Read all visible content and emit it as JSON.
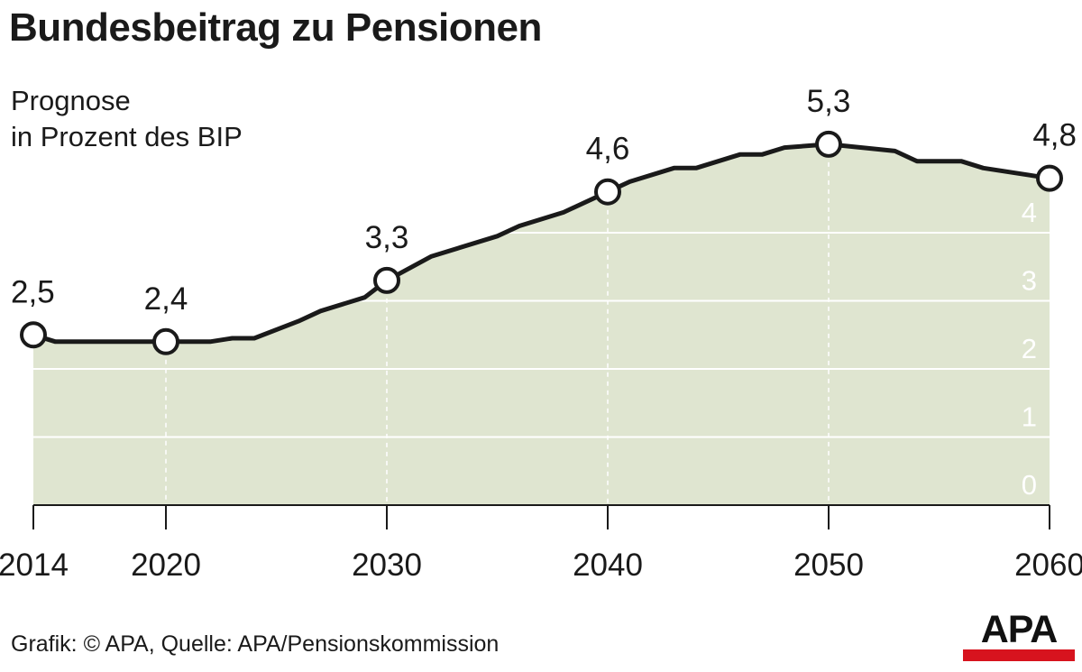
{
  "chart_data": {
    "type": "area",
    "title": "Bundesbeitrag zu Pensionen",
    "subtitle_lines": [
      "Prognose",
      "in Prozent des BIP"
    ],
    "x_ticks": [
      "2014",
      "2020",
      "2030",
      "2040",
      "2050",
      "2060"
    ],
    "y_ticks": [
      "0",
      "1",
      "2",
      "3",
      "4"
    ],
    "ylim": [
      0,
      5.3
    ],
    "xlim": [
      2014,
      2060
    ],
    "grid": true,
    "series": [
      {
        "x": [
          2014,
          2015,
          2020,
          2022,
          2023,
          2024,
          2026,
          2027,
          2029,
          2030,
          2032,
          2035,
          2036,
          2038,
          2040,
          2041,
          2043,
          2044,
          2046,
          2047,
          2048,
          2050,
          2053,
          2054,
          2056,
          2057,
          2060
        ],
        "y": [
          2.5,
          2.4,
          2.4,
          2.4,
          2.45,
          2.45,
          2.7,
          2.85,
          3.05,
          3.3,
          3.65,
          3.95,
          4.1,
          4.3,
          4.6,
          4.75,
          4.95,
          4.95,
          5.15,
          5.15,
          5.25,
          5.3,
          5.2,
          5.05,
          5.05,
          4.95,
          4.8
        ]
      }
    ],
    "highlighted_points": [
      {
        "x": 2014,
        "y": 2.5,
        "label": "2,5"
      },
      {
        "x": 2020,
        "y": 2.4,
        "label": "2,4"
      },
      {
        "x": 2030,
        "y": 3.3,
        "label": "3,3"
      },
      {
        "x": 2040,
        "y": 4.6,
        "label": "4,6"
      },
      {
        "x": 2050,
        "y": 5.3,
        "label": "5,3"
      },
      {
        "x": 2060,
        "y": 4.8,
        "label": "4,8"
      }
    ],
    "source": "Grafik: © APA, Quelle: APA/Pensionskommission",
    "colors": {
      "area": "#dfe5d0",
      "line": "#1a1a1a",
      "grid": "#ffffff",
      "marker_fill": "#ffffff",
      "axis": "#1a1a1a"
    }
  },
  "logo": {
    "text": "APA",
    "bar_color": "#d7131e"
  }
}
